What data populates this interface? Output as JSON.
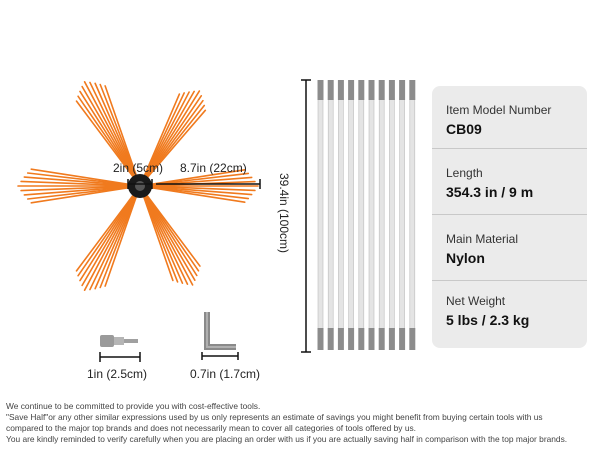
{
  "dimensions": {
    "hub_diameter": "2in (5cm)",
    "bristle_length": "8.7in (22cm)",
    "rod_length": "39.4in (100cm)",
    "adapter_length": "1in (2.5cm)",
    "wrench_length": "0.7in (1.7cm)"
  },
  "specs": [
    {
      "label": "Item Model Number",
      "value": "CB09"
    },
    {
      "label": "Length",
      "value": "354.3 in / 9 m"
    },
    {
      "label": "Main Material",
      "value": "Nylon"
    },
    {
      "label": "Net Weight",
      "value": "5 lbs / 2.3 kg"
    }
  ],
  "disclaimer": [
    "We continue to be committed to provide you with cost-effective tools.",
    "\"Save Half\"or any other similar expressions used by us only represents an estimate of savings you might benefit from buying certain tools with us",
    "compared to the major top brands and does not necessarily mean to cover all categories of tools offered by us.",
    "You are kindly reminded to verify carefully when you are placing an order with us if you are actually saving half in comparison with the top major brands."
  ],
  "colors": {
    "bristle": "#f07a1e",
    "hub": "#1a1a1a",
    "rod": "#e4e4e4",
    "card": "#ebebeb"
  },
  "rod_count": 10
}
